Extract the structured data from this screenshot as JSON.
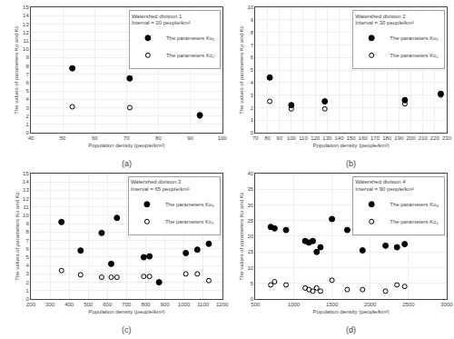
{
  "chart_data": [
    {
      "type": "scatter",
      "title": "Watershed division 1",
      "subtitle": "Interval = 20 people/km²",
      "xlabel": "Population density (people/km²)",
      "ylabel": "The values of parameters Ko and Kc",
      "annotations": [
        "(a)"
      ],
      "x": [
        53,
        71,
        93
      ],
      "series": [
        {
          "name": "The parameters Ko₁",
          "color": "#000000",
          "marker": "circle",
          "values": [
            7.7,
            6.5,
            2.1
          ]
        },
        {
          "name": "The parameters Kc₁",
          "color": "#000000",
          "marker": "circle-open",
          "values": [
            3.1,
            3.0,
            2.0
          ]
        }
      ],
      "xlim": [
        40,
        100
      ],
      "xticks": [
        40,
        50,
        60,
        70,
        80,
        90,
        100
      ],
      "ylim": [
        0,
        15
      ],
      "yticks": [
        0,
        1,
        2,
        3,
        4,
        5,
        6,
        7,
        8,
        9,
        10,
        11,
        12,
        13,
        14,
        15
      ],
      "grid": true,
      "legend": "upper right"
    },
    {
      "type": "scatter",
      "title": "Watershed division 2",
      "subtitle": "Interval = 30 people/km²",
      "xlabel": "Population density (people/km²)",
      "ylabel": "The values of parameters Ko and Kc",
      "annotations": [
        "(b)"
      ],
      "x": [
        82,
        100,
        128,
        195,
        225
      ],
      "series": [
        {
          "name": "The parameters Ko₂",
          "color": "#000000",
          "marker": "circle",
          "values": [
            4.4,
            2.2,
            2.5,
            2.6,
            3.1
          ]
        },
        {
          "name": "The parameters Kc₂",
          "color": "#000000",
          "marker": "circle-open",
          "values": [
            2.5,
            1.9,
            1.9,
            2.3,
            3.0
          ]
        }
      ],
      "xlim": [
        70,
        230
      ],
      "xticks": [
        70,
        80,
        90,
        100,
        110,
        120,
        130,
        140,
        150,
        160,
        170,
        180,
        190,
        200,
        210,
        220,
        230
      ],
      "ylim": [
        0,
        10
      ],
      "yticks": [
        0,
        1,
        2,
        3,
        4,
        5,
        6,
        7,
        8,
        9,
        10
      ],
      "grid": true,
      "legend": "upper right"
    },
    {
      "type": "scatter",
      "title": "Watershed division 3",
      "subtitle": "Interval = 65 people/km²",
      "xlabel": "Population density (people/km²)",
      "ylabel": "The values of parameters Ko and Kc",
      "annotations": [
        "(c)"
      ],
      "x": [
        360,
        460,
        570,
        620,
        650,
        790,
        820,
        870,
        1010,
        1070,
        1130
      ],
      "series": [
        {
          "name": "The parameters Ko₃",
          "color": "#000000",
          "marker": "circle",
          "values": [
            9.2,
            5.8,
            7.9,
            4.2,
            9.7,
            5.0,
            5.1,
            2.0,
            5.5,
            5.9,
            6.6
          ]
        },
        {
          "name": "The parameters Kc₃",
          "color": "#000000",
          "marker": "circle-open",
          "values": [
            3.4,
            2.9,
            2.6,
            2.6,
            2.6,
            2.7,
            2.7,
            2.0,
            3.0,
            3.0,
            2.2
          ]
        }
      ],
      "xlim": [
        200,
        1200
      ],
      "xticks": [
        200,
        300,
        400,
        500,
        600,
        700,
        800,
        900,
        1000,
        1100,
        1200
      ],
      "ylim": [
        0,
        15
      ],
      "yticks": [
        0,
        1,
        2,
        3,
        4,
        5,
        6,
        7,
        8,
        9,
        10,
        11,
        12,
        13,
        14,
        15
      ],
      "grid": true,
      "legend": "upper right"
    },
    {
      "type": "scatter",
      "title": "Watershed division 4",
      "subtitle": "Interval = 90 people/km²",
      "xlabel": "Population density (people/km²)",
      "ylabel": "The values of parameters Ko and Kc",
      "annotations": [
        "(d)"
      ],
      "x": [
        700,
        750,
        900,
        1150,
        1200,
        1250,
        1300,
        1350,
        1500,
        1700,
        1900,
        2200,
        2350,
        2450
      ],
      "series": [
        {
          "name": "The parameters Ko₄",
          "color": "#000000",
          "marker": "circle",
          "values": [
            23.0,
            22.5,
            22.0,
            18.5,
            18.0,
            18.5,
            15.0,
            16.5,
            25.5,
            22.0,
            15.5,
            17.0,
            16.5,
            17.5
          ]
        },
        {
          "name": "The parameters Kc₄",
          "color": "#000000",
          "marker": "circle-open",
          "values": [
            4.5,
            5.5,
            4.5,
            3.5,
            3.0,
            2.5,
            3.5,
            2.5,
            6.0,
            3.0,
            3.0,
            2.5,
            4.5,
            4.0
          ]
        }
      ],
      "xlim": [
        500,
        3000
      ],
      "xticks": [
        500,
        1000,
        1500,
        2000,
        2500,
        3000
      ],
      "ylim": [
        0,
        40
      ],
      "yticks": [
        0,
        5,
        10,
        15,
        20,
        25,
        30,
        35,
        40
      ],
      "grid": true,
      "legend": "upper right"
    }
  ]
}
